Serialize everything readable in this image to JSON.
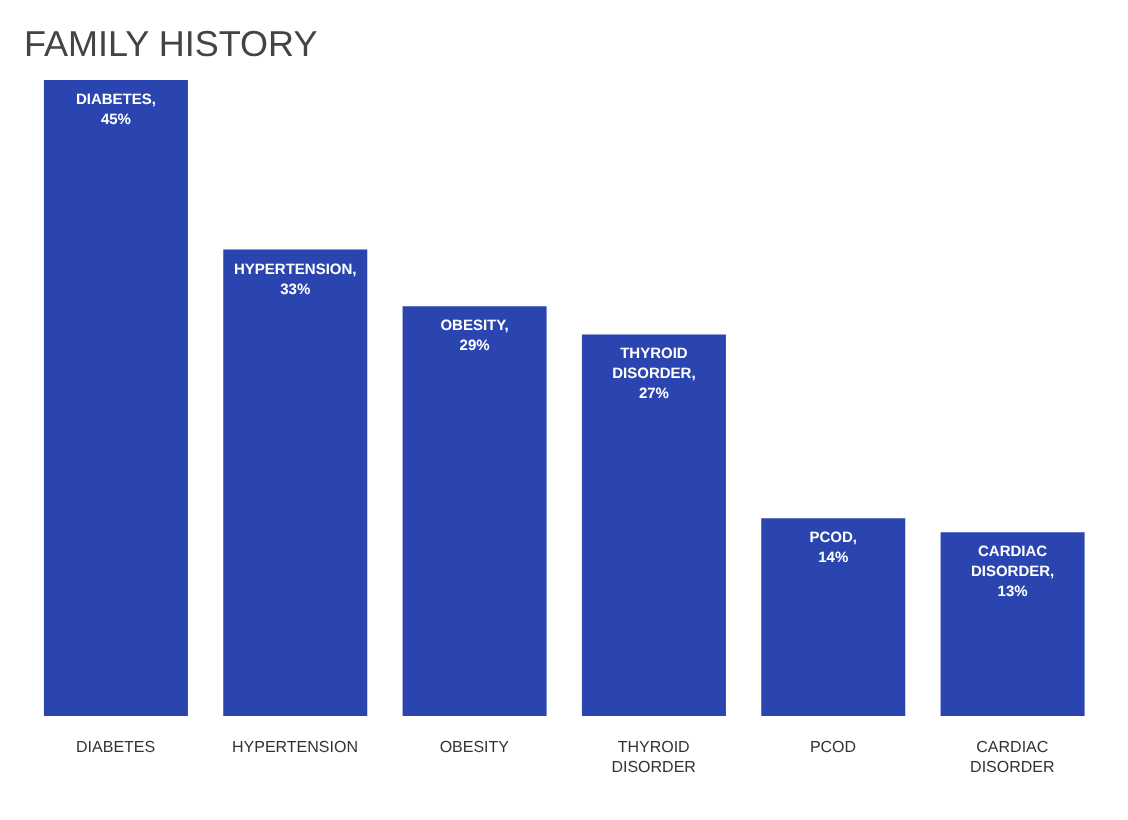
{
  "chart_data": {
    "type": "bar",
    "title": "FAMILY HISTORY",
    "categories": [
      "DIABETES",
      "HYPERTENSION",
      "OBESITY",
      "THYROID DISORDER",
      "PCOD",
      "CARDIAC DISORDER"
    ],
    "values": [
      45,
      33,
      29,
      27,
      14,
      13
    ],
    "value_labels": [
      "DIABETES, 45%",
      "HYPERTENSION, 33%",
      "OBESITY, 29%",
      "THYROID DISORDER, 27%",
      "PCOD, 14%",
      "CARDIAC DISORDER, 13%"
    ],
    "color": "#2a44b0",
    "tick_labels": "x"
  }
}
